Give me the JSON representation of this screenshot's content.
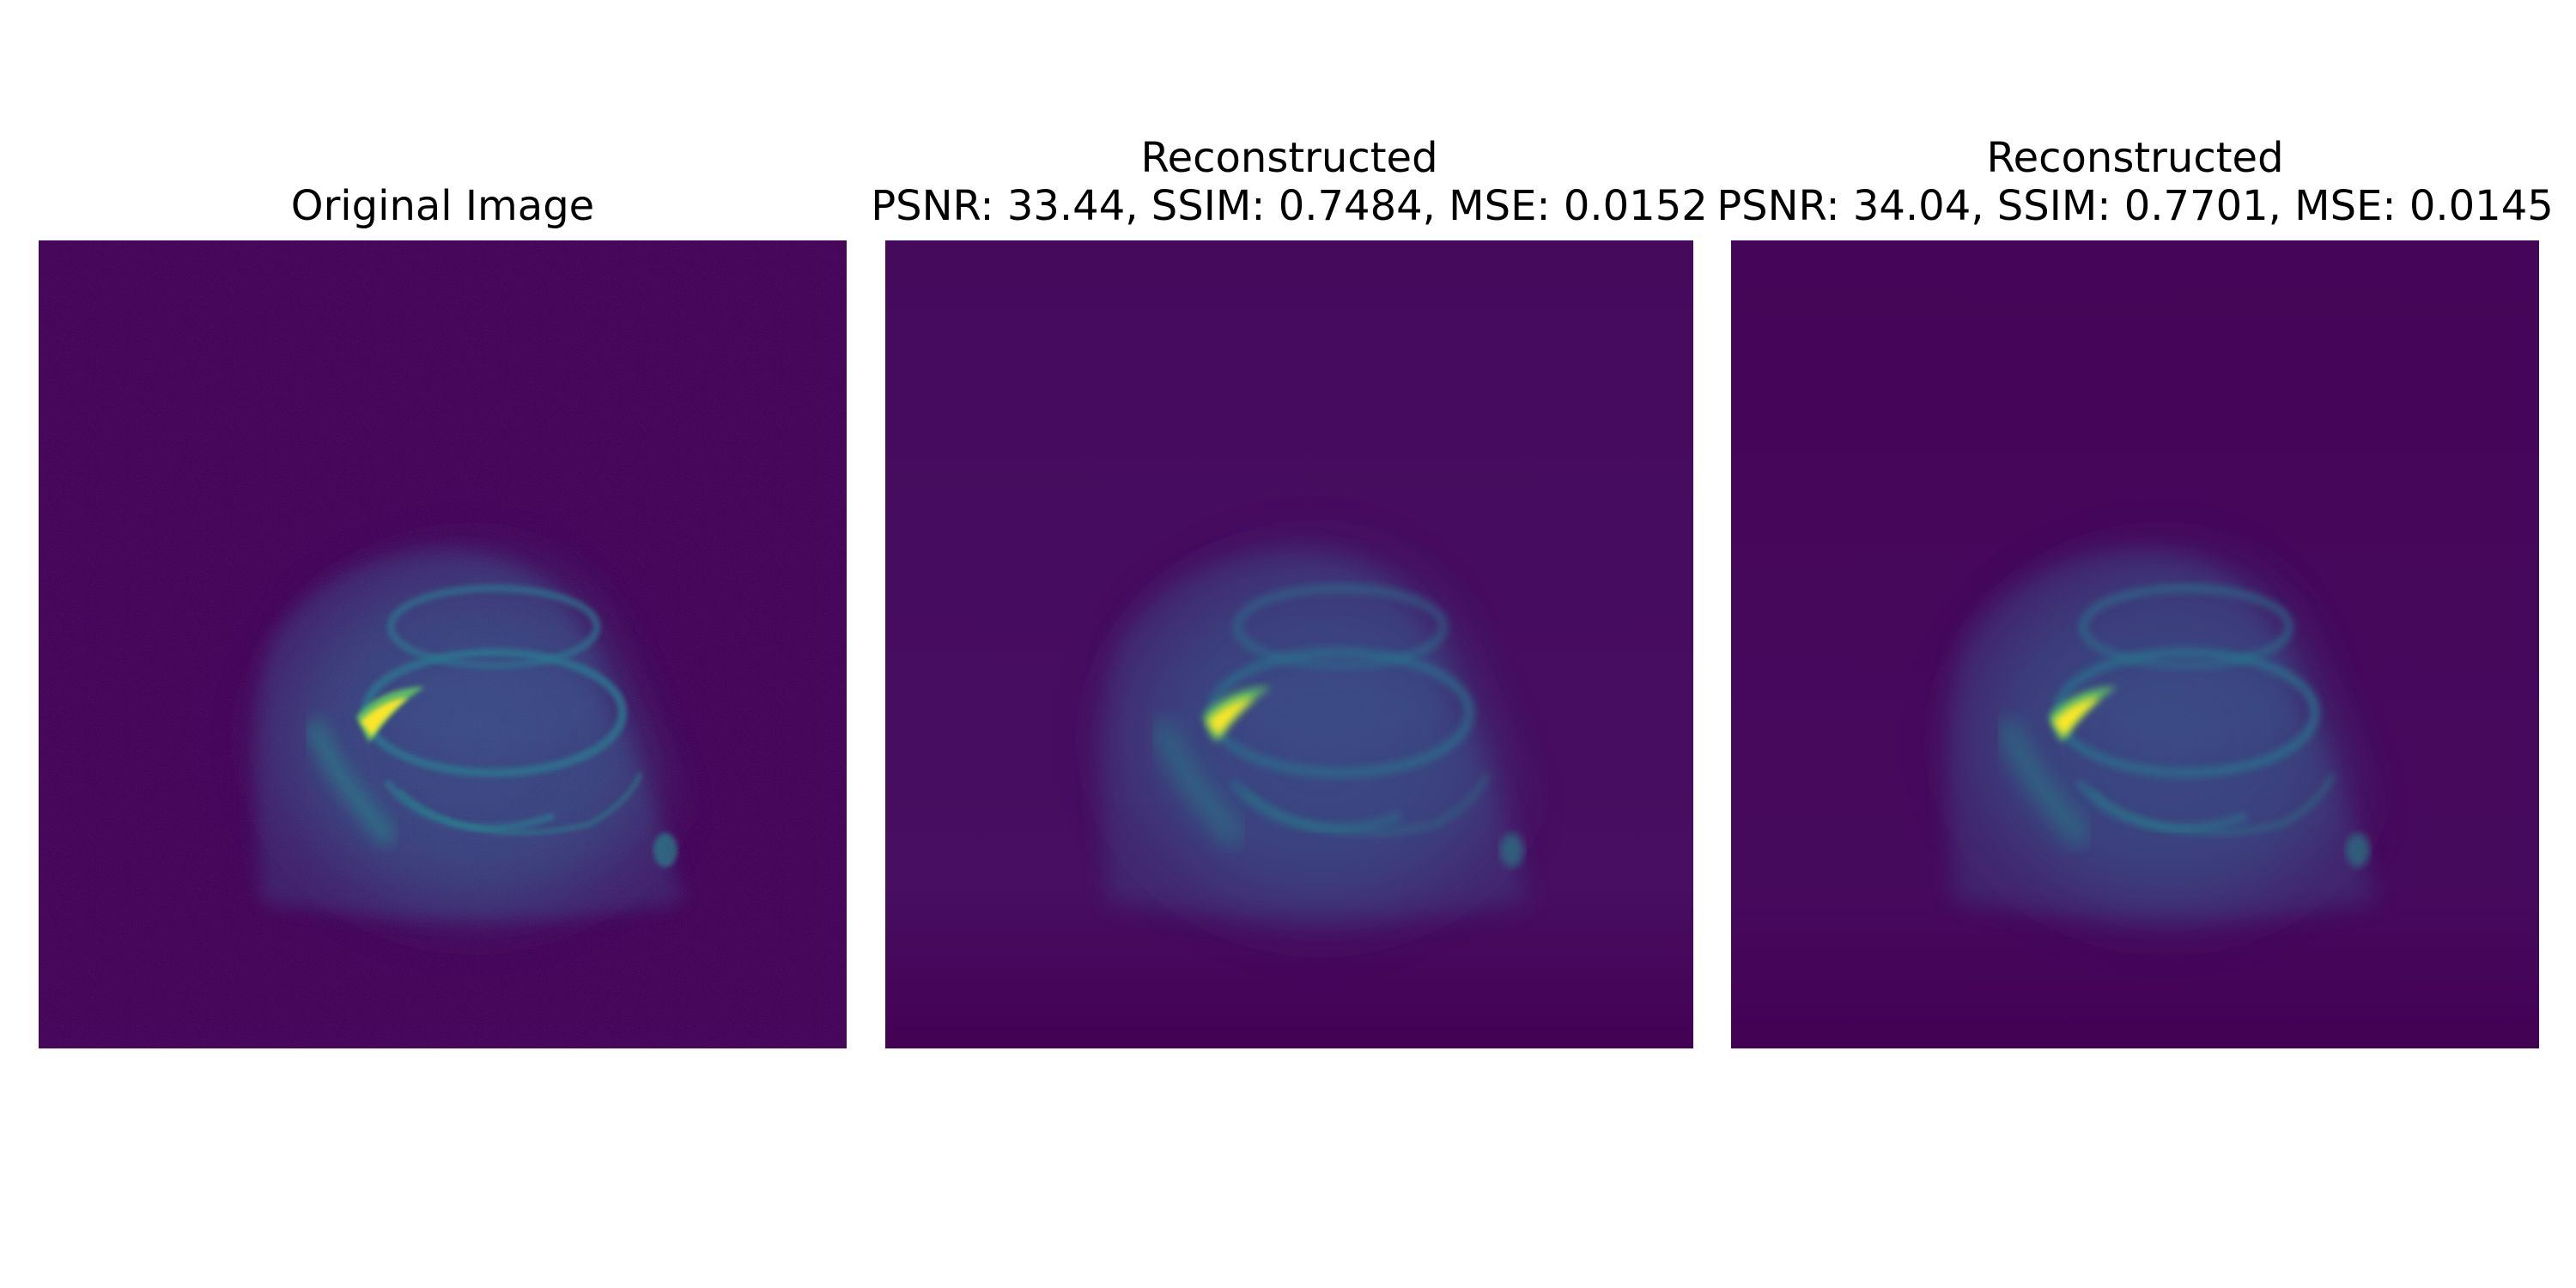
{
  "figure": {
    "colormap": "viridis",
    "background": "#ffffff",
    "panels": [
      {
        "title_lines": [
          "Original Image"
        ],
        "kind": "original"
      },
      {
        "title_lines": [
          "Reconstructed",
          "PSNR: 33.44, SSIM: 0.7484, MSE: 0.0152"
        ],
        "kind": "reconstructed",
        "metrics": {
          "psnr": 33.44,
          "ssim": 0.7484,
          "mse": 0.0152
        }
      },
      {
        "title_lines": [
          "Reconstructed",
          "PSNR: 34.04, SSIM: 0.7701, MSE: 0.0145"
        ],
        "kind": "reconstructed",
        "metrics": {
          "psnr": 34.04,
          "ssim": 0.7701,
          "mse": 0.0145
        }
      }
    ]
  },
  "colors": {
    "viridis_dark": "#440154",
    "viridis_blue": "#3b528b",
    "viridis_teal": "#21918c",
    "viridis_green": "#5ec962",
    "viridis_yellow": "#fde725"
  }
}
